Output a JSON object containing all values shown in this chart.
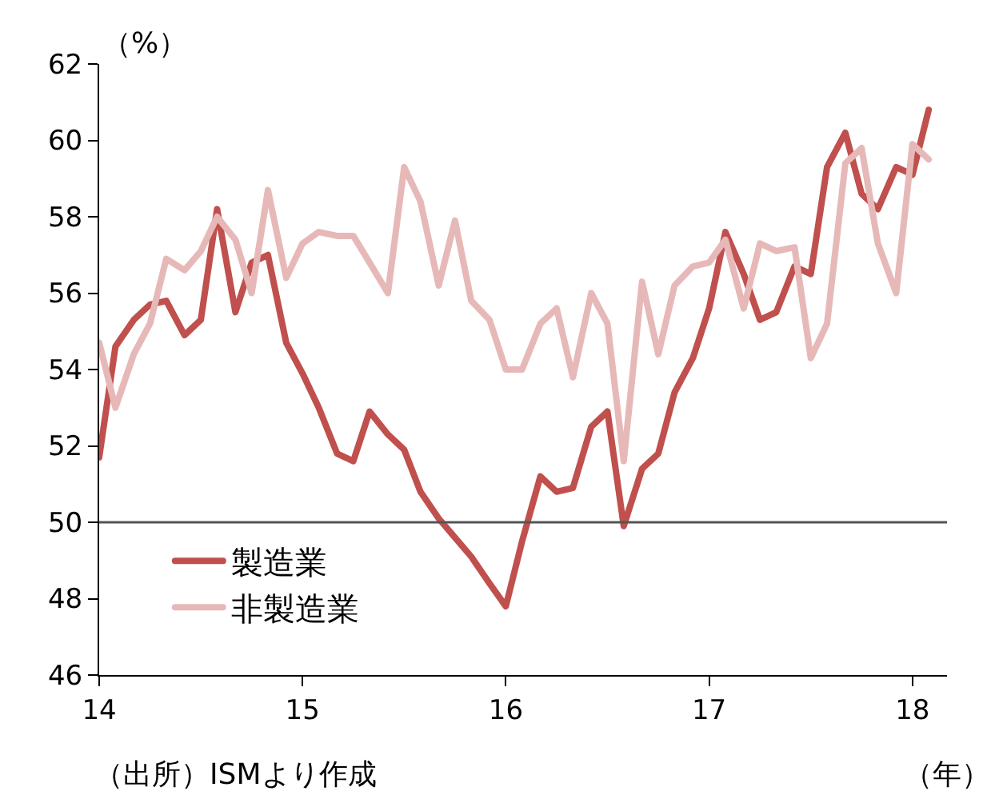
{
  "chart_data": {
    "type": "line",
    "ylabel": "（%）",
    "xlabel": "（年）",
    "annotations": [
      "（出所）ISMより作成"
    ],
    "x": [
      14.0,
      14.08,
      14.17,
      14.25,
      14.33,
      14.42,
      14.5,
      14.58,
      14.67,
      14.75,
      14.83,
      14.92,
      15.0,
      15.08,
      15.17,
      15.25,
      15.33,
      15.42,
      15.5,
      15.58,
      15.67,
      15.75,
      15.83,
      15.92,
      16.0,
      16.08,
      16.17,
      16.25,
      16.33,
      16.42,
      16.5,
      16.58,
      16.67,
      16.75,
      16.83,
      16.92,
      17.0,
      17.08,
      17.17,
      17.25,
      17.33,
      17.42,
      17.5,
      17.58,
      17.67,
      17.75,
      17.83,
      17.92,
      18.0,
      18.08
    ],
    "series": [
      {
        "name": "製造業",
        "color": "#c0504d",
        "values": [
          51.7,
          54.6,
          55.3,
          55.7,
          55.8,
          54.9,
          55.3,
          58.2,
          55.5,
          56.8,
          57.0,
          54.7,
          53.9,
          53.0,
          51.8,
          51.6,
          52.9,
          52.3,
          51.9,
          50.8,
          50.1,
          49.6,
          49.1,
          48.4,
          47.8,
          49.5,
          51.2,
          50.8,
          50.9,
          52.5,
          52.9,
          49.9,
          51.4,
          51.8,
          53.4,
          54.3,
          55.6,
          57.6,
          56.5,
          55.3,
          55.5,
          56.7,
          56.5,
          59.3,
          60.2,
          58.6,
          58.2,
          59.3,
          59.1,
          60.8
        ]
      },
      {
        "name": "非製造業",
        "color": "#e6b9b8",
        "values": [
          54.7,
          53.0,
          54.4,
          55.2,
          56.9,
          56.6,
          57.1,
          58.0,
          57.4,
          56.0,
          58.7,
          56.4,
          57.3,
          57.6,
          57.5,
          57.5,
          56.8,
          56.0,
          59.3,
          58.4,
          56.2,
          57.9,
          55.8,
          55.3,
          54.0,
          54.0,
          55.2,
          55.6,
          53.8,
          56.0,
          55.2,
          51.6,
          56.3,
          54.4,
          56.2,
          56.7,
          56.8,
          57.4,
          55.6,
          57.3,
          57.1,
          57.2,
          54.3,
          55.2,
          59.4,
          59.8,
          57.3,
          56.0,
          59.9,
          59.5
        ]
      }
    ],
    "ref_lines": [
      {
        "axis": "y",
        "value": 50,
        "color": "#555555"
      }
    ],
    "xlim": [
      14,
      18.17
    ],
    "xticks": [
      14,
      15,
      16,
      17,
      18
    ],
    "ylim": [
      46,
      62
    ],
    "yticks": [
      46,
      48,
      50,
      52,
      54,
      56,
      58,
      60,
      62
    ],
    "legend": "bottom left",
    "marker": "none",
    "line_style": "solid"
  }
}
